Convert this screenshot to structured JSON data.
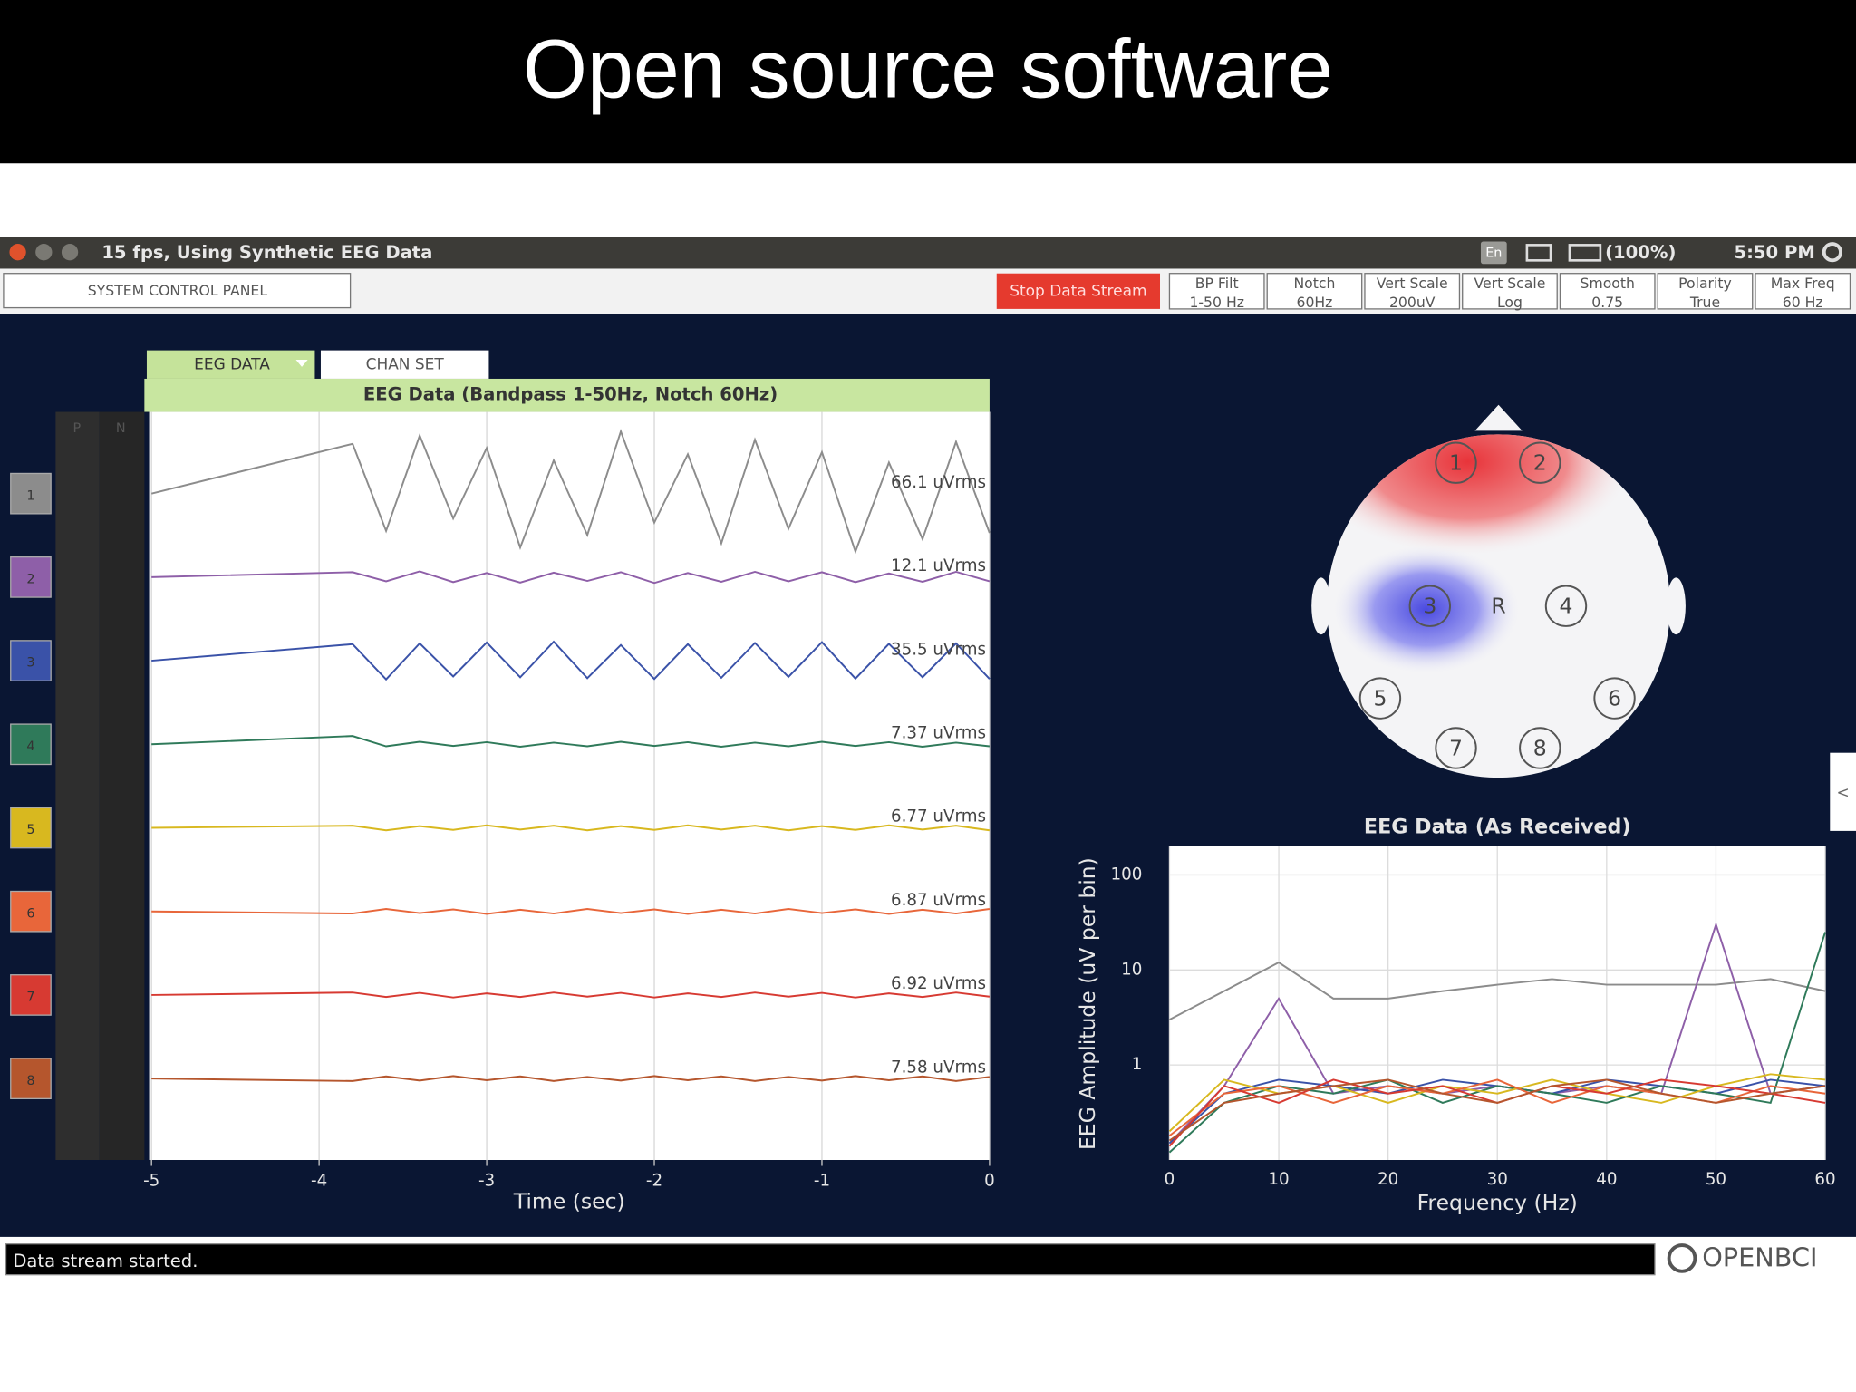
{
  "slide_title": "Open source software",
  "titlebar": {
    "text": "15 fps, Using Synthetic EEG Data",
    "lang": "En",
    "battery": "(100%)",
    "time": "5:50 PM"
  },
  "toolbar": {
    "system_control_panel": "SYSTEM CONTROL PANEL",
    "stop_button": "Stop Data Stream",
    "buttons": [
      {
        "label": "BP Filt",
        "value": "1-50 Hz"
      },
      {
        "label": "Notch",
        "value": "60Hz"
      },
      {
        "label": "Vert Scale",
        "value": "200uV"
      },
      {
        "label": "Vert Scale",
        "value": "Log"
      },
      {
        "label": "Smooth",
        "value": "0.75"
      },
      {
        "label": "Polarity",
        "value": "True"
      },
      {
        "label": "Max Freq",
        "value": "60 Hz"
      }
    ]
  },
  "tabs": [
    "EEG DATA",
    "CHAN SET"
  ],
  "column_headers": [
    "P",
    "N"
  ],
  "chart_data": [
    {
      "type": "line",
      "title": "EEG Data (Bandpass 1-50Hz, Notch 60Hz)",
      "x_label": "Time (sec)",
      "xlim": [
        -5,
        0
      ],
      "xticks": [
        -5,
        -4,
        -3,
        -2,
        -1,
        0
      ],
      "ylim": [
        -100,
        100
      ],
      "grid": true,
      "x": [
        -5,
        -3.8,
        -3.6,
        -3.4,
        -3.2,
        -3,
        -2.8,
        -2.6,
        -2.4,
        -2.2,
        -2,
        -1.8,
        -1.6,
        -1.4,
        -1.2,
        -1,
        -0.8,
        -0.6,
        -0.4,
        -0.2,
        0
      ],
      "series": [
        {
          "name": "1",
          "color": "#8c8c8c",
          "rms_label": "66.1 uVrms",
          "values": [
            0,
            120,
            -90,
            140,
            -60,
            110,
            -130,
            80,
            -100,
            150,
            -70,
            95,
            -120,
            130,
            -85,
            100,
            -140,
            75,
            -110,
            125,
            -95
          ]
        },
        {
          "name": "2",
          "color": "#8e5fa8",
          "rms_label": "12.1 uVrms",
          "values": [
            0,
            12,
            -10,
            14,
            -12,
            10,
            -13,
            11,
            -9,
            12,
            -14,
            10,
            -11,
            13,
            -10,
            12,
            -12,
            9,
            -11,
            13,
            -10
          ]
        },
        {
          "name": "3",
          "color": "#3a52a8",
          "rms_label": "35.5 uVrms",
          "values": [
            0,
            40,
            -45,
            42,
            -38,
            44,
            -40,
            46,
            -42,
            38,
            -44,
            40,
            -41,
            43,
            -39,
            45,
            -43,
            41,
            -40,
            42,
            -44
          ]
        },
        {
          "name": "4",
          "color": "#2f7a5a",
          "rms_label": "7.37 uVrms",
          "values": [
            0,
            20,
            -5,
            6,
            -4,
            5,
            -6,
            4,
            -5,
            6,
            -4,
            5,
            -6,
            4,
            -5,
            6,
            -4,
            5,
            -6,
            4,
            -5
          ]
        },
        {
          "name": "5",
          "color": "#d8b81f",
          "rms_label": "6.77 uVrms",
          "values": [
            0,
            5,
            -6,
            4,
            -5,
            6,
            -4,
            5,
            -6,
            4,
            -5,
            6,
            -4,
            5,
            -6,
            4,
            -5,
            6,
            -4,
            5,
            -6
          ]
        },
        {
          "name": "6",
          "color": "#e8663a",
          "rms_label": "6.87 uVrms",
          "values": [
            0,
            -5,
            6,
            -4,
            5,
            -6,
            4,
            -5,
            6,
            -4,
            5,
            -6,
            4,
            -5,
            6,
            -4,
            5,
            -6,
            4,
            -5,
            6
          ]
        },
        {
          "name": "7",
          "color": "#d73a32",
          "rms_label": "6.92 uVrms",
          "values": [
            0,
            6,
            -5,
            5,
            -6,
            4,
            -5,
            6,
            -4,
            5,
            -6,
            4,
            -5,
            6,
            -4,
            5,
            -6,
            4,
            -5,
            6,
            -4
          ]
        },
        {
          "name": "8",
          "color": "#b5562d",
          "rms_label": "7.58 uVrms",
          "values": [
            0,
            -6,
            5,
            -5,
            6,
            -4,
            5,
            -6,
            4,
            -5,
            6,
            -4,
            5,
            -6,
            4,
            -5,
            6,
            -4,
            5,
            -6,
            4
          ]
        }
      ]
    },
    {
      "type": "line",
      "title": "EEG Data (As Received)",
      "x_label": "Frequency (Hz)",
      "y_label": "EEG Amplitude (uV per bin)",
      "log_y": true,
      "grid": true,
      "xlim": [
        0,
        60
      ],
      "xticks": [
        0,
        10,
        20,
        30,
        40,
        50,
        60
      ],
      "ylim": [
        0.1,
        200
      ],
      "yticks": [
        1,
        10,
        100
      ],
      "x": [
        0,
        5,
        10,
        15,
        20,
        25,
        30,
        35,
        40,
        45,
        50,
        55,
        60
      ],
      "series": [
        {
          "color": "#8c8c8c",
          "values": [
            3,
            6,
            12,
            5,
            5,
            6,
            7,
            8,
            7,
            7,
            7,
            8,
            6
          ]
        },
        {
          "color": "#8e5fa8",
          "values": [
            0.15,
            0.6,
            5,
            0.5,
            0.6,
            0.5,
            0.6,
            0.5,
            0.6,
            0.5,
            30,
            0.5,
            0.6
          ]
        },
        {
          "color": "#3a52a8",
          "values": [
            0.15,
            0.5,
            0.7,
            0.6,
            0.5,
            0.7,
            0.6,
            0.5,
            0.7,
            0.6,
            0.5,
            0.7,
            0.6
          ]
        },
        {
          "color": "#2f7a5a",
          "values": [
            0.12,
            0.4,
            0.6,
            0.5,
            0.7,
            0.4,
            0.6,
            0.5,
            0.4,
            0.6,
            0.5,
            0.4,
            25
          ]
        },
        {
          "color": "#d8b81f",
          "values": [
            0.2,
            0.7,
            0.5,
            0.6,
            0.4,
            0.6,
            0.5,
            0.7,
            0.5,
            0.4,
            0.6,
            0.8,
            0.7
          ]
        },
        {
          "color": "#e8663a",
          "values": [
            0.18,
            0.5,
            0.6,
            0.4,
            0.6,
            0.5,
            0.7,
            0.4,
            0.6,
            0.5,
            0.4,
            0.6,
            0.5
          ]
        },
        {
          "color": "#d73a32",
          "values": [
            0.14,
            0.6,
            0.4,
            0.7,
            0.5,
            0.6,
            0.4,
            0.6,
            0.5,
            0.7,
            0.6,
            0.5,
            0.4
          ]
        },
        {
          "color": "#b5562d",
          "values": [
            0.16,
            0.4,
            0.5,
            0.6,
            0.7,
            0.5,
            0.4,
            0.6,
            0.7,
            0.5,
            0.4,
            0.5,
            0.6
          ]
        }
      ]
    }
  ],
  "head_plot": {
    "electrodes": [
      "1",
      "2",
      "3",
      "4",
      "5",
      "6",
      "7",
      "8"
    ],
    "reference": "R"
  },
  "side_tab": "<",
  "status": "Data stream started.",
  "logo": "OPENBCI"
}
